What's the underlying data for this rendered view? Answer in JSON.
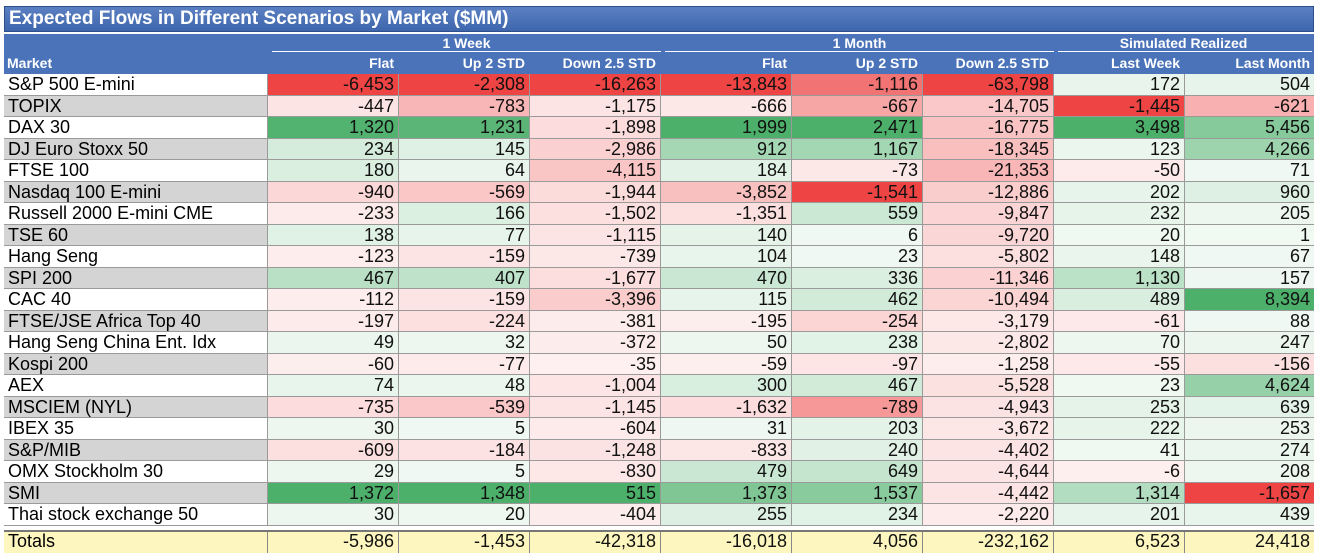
{
  "title": "Expected Flows in Different Scenarios by Market ($MM)",
  "header": {
    "market_label": "Market",
    "groups": [
      {
        "label": "1 Week",
        "columns": [
          "Flat",
          "Up 2 STD",
          "Down 2.5 STD"
        ]
      },
      {
        "label": "1 Month",
        "columns": [
          "Flat",
          "Up 2 STD",
          "Down 2.5 STD"
        ]
      },
      {
        "label": "Simulated Realized",
        "columns": [
          "Last Week",
          "Last Month"
        ]
      }
    ]
  },
  "chart_data": {
    "type": "table",
    "title": "Expected Flows in Different Scenarios by Market ($MM)",
    "column_groups": [
      "1 Week",
      "1 Week",
      "1 Week",
      "1 Month",
      "1 Month",
      "1 Month",
      "Simulated Realized",
      "Simulated Realized"
    ],
    "columns": [
      "Flat",
      "Up 2 STD",
      "Down 2.5 STD",
      "Flat",
      "Up 2 STD",
      "Down 2.5 STD",
      "Last Week",
      "Last Month"
    ],
    "rows": [
      {
        "market": "S&P 500 E-mini",
        "values": [
          "-6,453",
          "-2,308",
          "-16,263",
          "-13,843",
          "-1,116",
          "-63,798",
          "172",
          "504"
        ]
      },
      {
        "market": "TOPIX",
        "values": [
          "-447",
          "-783",
          "-1,175",
          "-666",
          "-667",
          "-14,705",
          "-1,445",
          "-621"
        ]
      },
      {
        "market": "DAX 30",
        "values": [
          "1,320",
          "1,231",
          "-1,898",
          "1,999",
          "2,471",
          "-16,775",
          "3,498",
          "5,456"
        ]
      },
      {
        "market": "DJ Euro Stoxx 50",
        "values": [
          "234",
          "145",
          "-2,986",
          "912",
          "1,167",
          "-18,345",
          "123",
          "4,266"
        ]
      },
      {
        "market": "FTSE 100",
        "values": [
          "180",
          "64",
          "-4,115",
          "184",
          "-73",
          "-21,353",
          "-50",
          "71"
        ]
      },
      {
        "market": "Nasdaq 100 E-mini",
        "values": [
          "-940",
          "-569",
          "-1,944",
          "-3,852",
          "-1,541",
          "-12,886",
          "202",
          "960"
        ]
      },
      {
        "market": "Russell 2000 E-mini CME",
        "values": [
          "-233",
          "166",
          "-1,502",
          "-1,351",
          "559",
          "-9,847",
          "232",
          "205"
        ]
      },
      {
        "market": "TSE 60",
        "values": [
          "138",
          "77",
          "-1,115",
          "140",
          "6",
          "-9,720",
          "20",
          "1"
        ]
      },
      {
        "market": "Hang Seng",
        "values": [
          "-123",
          "-159",
          "-739",
          "104",
          "23",
          "-5,802",
          "148",
          "67"
        ]
      },
      {
        "market": "SPI 200",
        "values": [
          "467",
          "407",
          "-1,677",
          "470",
          "336",
          "-11,346",
          "1,130",
          "157"
        ]
      },
      {
        "market": "CAC 40",
        "values": [
          "-112",
          "-159",
          "-3,396",
          "115",
          "462",
          "-10,494",
          "489",
          "8,394"
        ]
      },
      {
        "market": "FTSE/JSE Africa Top 40",
        "values": [
          "-197",
          "-224",
          "-381",
          "-195",
          "-254",
          "-3,179",
          "-61",
          "88"
        ]
      },
      {
        "market": "Hang Seng China Ent. Idx",
        "values": [
          "49",
          "32",
          "-372",
          "50",
          "238",
          "-2,802",
          "70",
          "247"
        ]
      },
      {
        "market": "Kospi 200",
        "values": [
          "-60",
          "-77",
          "-35",
          "-59",
          "-97",
          "-1,258",
          "-55",
          "-156"
        ]
      },
      {
        "market": "AEX",
        "values": [
          "74",
          "48",
          "-1,004",
          "300",
          "467",
          "-5,528",
          "23",
          "4,624"
        ]
      },
      {
        "market": "MSCIEM (NYL)",
        "values": [
          "-735",
          "-539",
          "-1,145",
          "-1,632",
          "-789",
          "-4,943",
          "253",
          "639"
        ]
      },
      {
        "market": "IBEX 35",
        "values": [
          "30",
          "5",
          "-604",
          "31",
          "203",
          "-3,672",
          "222",
          "253"
        ]
      },
      {
        "market": "S&P/MIB",
        "values": [
          "-609",
          "-184",
          "-1,248",
          "-833",
          "240",
          "-4,402",
          "41",
          "274"
        ]
      },
      {
        "market": "OMX Stockholm 30",
        "values": [
          "29",
          "5",
          "-830",
          "479",
          "649",
          "-4,644",
          "-6",
          "208"
        ]
      },
      {
        "market": "SMI",
        "values": [
          "1,372",
          "1,348",
          "515",
          "1,373",
          "1,537",
          "-4,442",
          "1,314",
          "-1,657"
        ]
      },
      {
        "market": "Thai stock exchange 50",
        "values": [
          "30",
          "20",
          "-404",
          "255",
          "234",
          "-2,220",
          "201",
          "439"
        ]
      }
    ],
    "totals": {
      "market": "Totals",
      "values": [
        "-5,986",
        "-1,453",
        "-42,318",
        "-16,018",
        "4,056",
        "-232,162",
        "6,523",
        "24,418"
      ]
    },
    "colors": {
      "positive": "#4caf6a",
      "negative": "#ee4444",
      "neutral": "#ffffff",
      "header": "#4b73b9",
      "totals": "#fdf7bf",
      "alt_row_market": "#d4d4d4"
    }
  }
}
